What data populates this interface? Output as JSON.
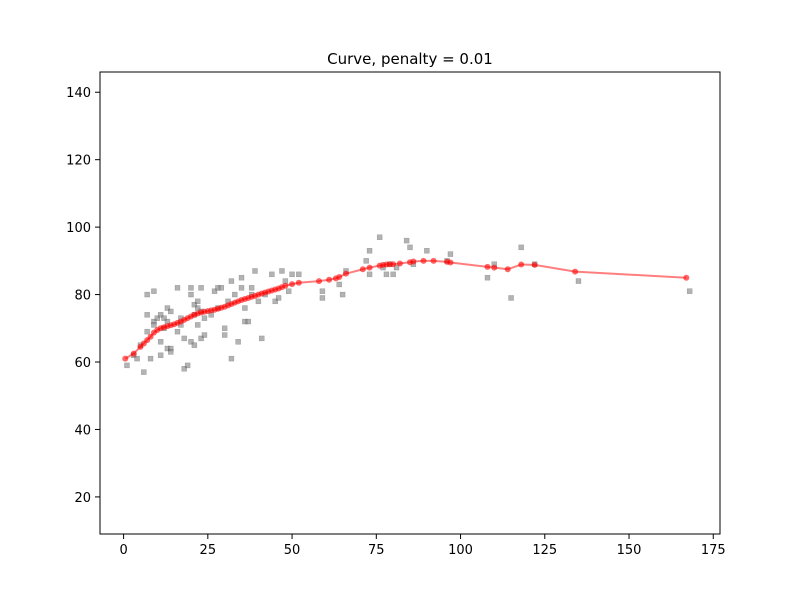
{
  "chart_data": {
    "type": "scatter",
    "title": "Curve, penalty = 0.01",
    "xlabel": "",
    "ylabel": "",
    "xlim": [
      -7,
      177
    ],
    "ylim": [
      9,
      146
    ],
    "x_ticks": [
      0,
      25,
      50,
      75,
      100,
      125,
      150,
      175
    ],
    "y_ticks": [
      20,
      40,
      60,
      80,
      100,
      120,
      140
    ],
    "grid": false,
    "legend": "none",
    "colors": {
      "scatter": "#808080",
      "curve": "#ff0000"
    },
    "series": [
      {
        "kind": "scatter",
        "marker": "square",
        "points": [
          [
            1,
            59
          ],
          [
            3,
            62
          ],
          [
            4,
            61
          ],
          [
            5,
            65
          ],
          [
            6,
            57
          ],
          [
            7,
            80
          ],
          [
            7,
            74
          ],
          [
            7,
            69
          ],
          [
            8,
            61
          ],
          [
            9,
            81
          ],
          [
            9,
            72
          ],
          [
            9,
            71
          ],
          [
            10,
            73
          ],
          [
            11,
            74
          ],
          [
            11,
            66
          ],
          [
            11,
            62
          ],
          [
            12,
            73
          ],
          [
            12,
            70
          ],
          [
            13,
            76
          ],
          [
            13,
            72
          ],
          [
            13,
            64
          ],
          [
            14,
            75
          ],
          [
            14,
            64
          ],
          [
            14,
            63
          ],
          [
            16,
            82
          ],
          [
            16,
            69
          ],
          [
            17,
            73
          ],
          [
            17,
            71
          ],
          [
            18,
            67
          ],
          [
            18,
            58
          ],
          [
            19,
            59
          ],
          [
            20,
            82
          ],
          [
            20,
            80
          ],
          [
            20,
            66
          ],
          [
            21,
            77
          ],
          [
            21,
            74
          ],
          [
            21,
            65
          ],
          [
            22,
            78
          ],
          [
            22,
            76
          ],
          [
            22,
            71
          ],
          [
            23,
            82
          ],
          [
            23,
            75
          ],
          [
            23,
            67
          ],
          [
            24,
            73
          ],
          [
            24,
            68
          ],
          [
            26,
            74
          ],
          [
            27,
            81
          ],
          [
            28,
            82
          ],
          [
            28,
            76
          ],
          [
            29,
            82
          ],
          [
            30,
            70
          ],
          [
            30,
            68
          ],
          [
            31,
            78
          ],
          [
            32,
            84
          ],
          [
            32,
            61
          ],
          [
            33,
            80
          ],
          [
            34,
            66
          ],
          [
            35,
            85
          ],
          [
            35,
            82
          ],
          [
            36,
            76
          ],
          [
            36,
            72
          ],
          [
            37,
            72
          ],
          [
            38,
            82
          ],
          [
            38,
            80
          ],
          [
            39,
            87
          ],
          [
            40,
            78
          ],
          [
            41,
            67
          ],
          [
            42,
            80
          ],
          [
            44,
            86
          ],
          [
            45,
            78
          ],
          [
            46,
            79
          ],
          [
            47,
            87
          ],
          [
            48,
            84
          ],
          [
            49,
            81
          ],
          [
            50,
            86
          ],
          [
            52,
            86
          ],
          [
            59,
            81
          ],
          [
            59,
            79
          ],
          [
            64,
            83
          ],
          [
            65,
            80
          ],
          [
            66,
            87
          ],
          [
            72,
            90
          ],
          [
            73,
            93
          ],
          [
            73,
            86
          ],
          [
            76,
            97
          ],
          [
            77,
            88
          ],
          [
            78,
            86
          ],
          [
            79,
            89
          ],
          [
            80,
            86
          ],
          [
            81,
            88
          ],
          [
            84,
            96
          ],
          [
            85,
            94
          ],
          [
            86,
            89
          ],
          [
            90,
            93
          ],
          [
            96,
            90
          ],
          [
            97,
            92
          ],
          [
            108,
            85
          ],
          [
            110,
            89
          ],
          [
            115,
            79
          ],
          [
            118,
            94
          ],
          [
            122,
            89
          ],
          [
            135,
            84
          ],
          [
            168,
            81
          ]
        ]
      },
      {
        "kind": "line",
        "marker": "circle",
        "points": [
          [
            0.5,
            61.0
          ],
          [
            3,
            62.5
          ],
          [
            5,
            64.5
          ],
          [
            6,
            65.5
          ],
          [
            7,
            66.5
          ],
          [
            8,
            67.5
          ],
          [
            9,
            68.7
          ],
          [
            10,
            69.5
          ],
          [
            11,
            70.0
          ],
          [
            12,
            70.3
          ],
          [
            13,
            70.6
          ],
          [
            14,
            70.9
          ],
          [
            15,
            71.2
          ],
          [
            16,
            71.6
          ],
          [
            17,
            72.0
          ],
          [
            18,
            72.5
          ],
          [
            19,
            73.0
          ],
          [
            20,
            73.5
          ],
          [
            21,
            74.0
          ],
          [
            22,
            74.4
          ],
          [
            23,
            74.7
          ],
          [
            24,
            74.9
          ],
          [
            25,
            75.1
          ],
          [
            26,
            75.3
          ],
          [
            27,
            75.5
          ],
          [
            28,
            75.8
          ],
          [
            29,
            76.1
          ],
          [
            30,
            76.4
          ],
          [
            31,
            76.8
          ],
          [
            32,
            77.2
          ],
          [
            33,
            77.6
          ],
          [
            34,
            78.0
          ],
          [
            35,
            78.4
          ],
          [
            36,
            78.7
          ],
          [
            37,
            79.0
          ],
          [
            38,
            79.3
          ],
          [
            39,
            79.6
          ],
          [
            40,
            80.0
          ],
          [
            41,
            80.3
          ],
          [
            42,
            80.6
          ],
          [
            43,
            80.9
          ],
          [
            44,
            81.2
          ],
          [
            45,
            81.5
          ],
          [
            46,
            81.8
          ],
          [
            47,
            82.2
          ],
          [
            48,
            82.6
          ],
          [
            50,
            83.1
          ],
          [
            52,
            83.5
          ],
          [
            58,
            84.0
          ],
          [
            61,
            84.4
          ],
          [
            63,
            84.8
          ],
          [
            64,
            85.2
          ],
          [
            66,
            86.2
          ],
          [
            71,
            87.5
          ],
          [
            73,
            88.0
          ],
          [
            76,
            88.6
          ],
          [
            77,
            88.8
          ],
          [
            78,
            88.9
          ],
          [
            79,
            89.0
          ],
          [
            80,
            89.0
          ],
          [
            82,
            89.2
          ],
          [
            85,
            89.6
          ],
          [
            86,
            89.8
          ],
          [
            89,
            90.0
          ],
          [
            92,
            90.0
          ],
          [
            96,
            89.7
          ],
          [
            97,
            89.5
          ],
          [
            108,
            88.2
          ],
          [
            110,
            88.0
          ],
          [
            114,
            87.5
          ],
          [
            118,
            88.9
          ],
          [
            122,
            88.8
          ],
          [
            134,
            86.8
          ],
          [
            167,
            85.0
          ]
        ]
      }
    ]
  }
}
